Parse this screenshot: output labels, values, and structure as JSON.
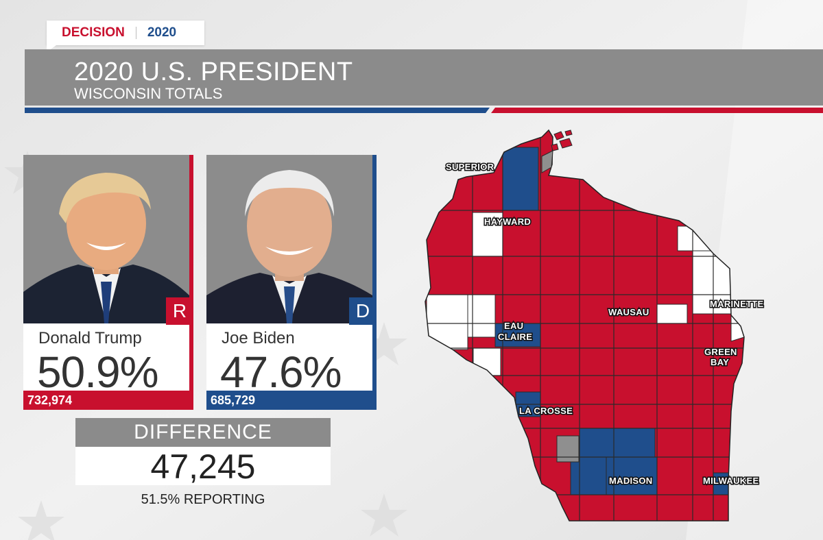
{
  "tag": {
    "brand": "DECISION",
    "year": "2020"
  },
  "header": {
    "title": "2020 U.S. PRESIDENT",
    "subtitle": "WISCONSIN TOTALS"
  },
  "candidates": [
    {
      "name": "Donald Trump",
      "party": "R",
      "percent": "50.9%",
      "votes": "732,974",
      "color": "#c8102e"
    },
    {
      "name": "Joe Biden",
      "party": "D",
      "percent": "47.6%",
      "votes": "685,729",
      "color": "#1f4e8c"
    }
  ],
  "difference": {
    "label": "DIFFERENCE",
    "value": "47,245"
  },
  "reporting": "51.5% REPORTING",
  "map": {
    "colors": {
      "republican": "#c8102e",
      "democrat": "#1f4e8c",
      "none": "#ffffff",
      "pending": "#8f8f8f"
    },
    "cities": [
      "SUPERIOR",
      "HAYWARD",
      "EAU",
      "CLAIRE",
      "WAUSAU",
      "MARINETTE",
      "GREEN",
      "BAY",
      "LA CROSSE",
      "MADISON",
      "MILWAUKEE"
    ]
  }
}
